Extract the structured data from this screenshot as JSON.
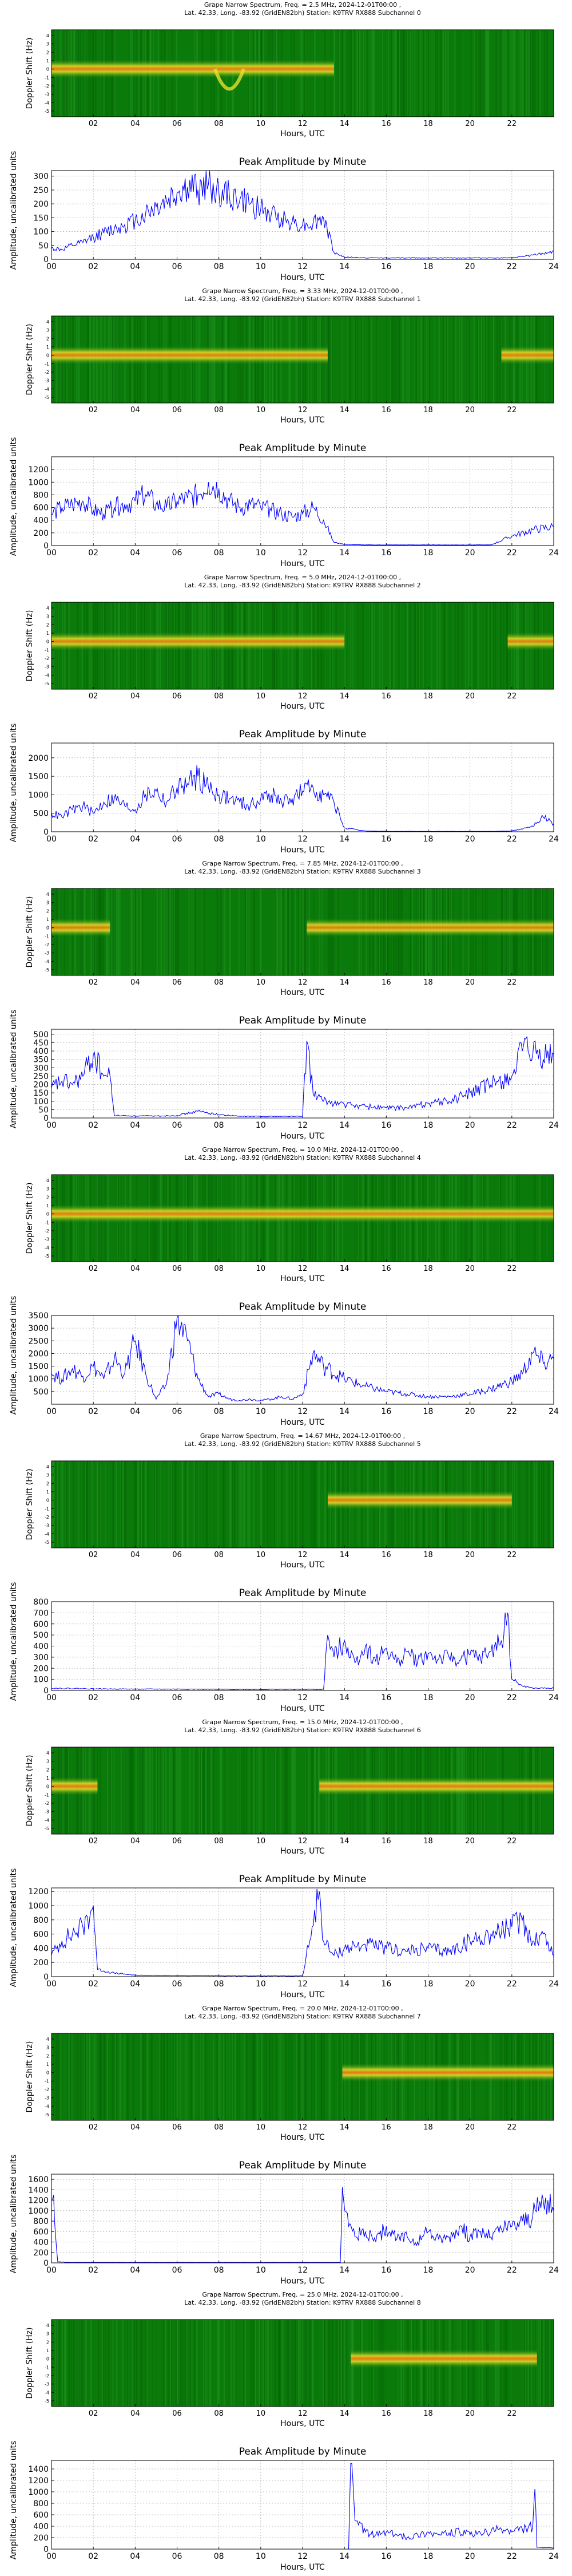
{
  "colors": {
    "line": "#0000ff",
    "grid": "#b0b0b0",
    "spectro_bg": "#0a7a0a",
    "spectro_band": "#e8e02a",
    "spectro_core": "#f07a10"
  },
  "common": {
    "xlabel": "Hours, UTC",
    "spectro_ylabel": "Doppler Shift (Hz)",
    "amp_ylabel": "Amplitude, uncalibrated units",
    "amp_title": "Peak Amplitude by Minute",
    "spectro_xticks": [
      "02",
      "04",
      "06",
      "08",
      "10",
      "12",
      "14",
      "16",
      "18",
      "20",
      "22"
    ],
    "spectro_yticks": [
      "4",
      "3",
      "2",
      "1",
      "0",
      "-1",
      "-2",
      "-3",
      "-4",
      "-5"
    ],
    "amp_xticks": [
      "00",
      "02",
      "04",
      "06",
      "08",
      "10",
      "12",
      "14",
      "16",
      "18",
      "20",
      "22",
      "24"
    ]
  },
  "chart_data": [
    {
      "type": "heatmap",
      "title": "Grape Narrow Spectrum, Freq. = 2.5 MHz, 2024-12-01T00:00 ,",
      "subtitle": "Lat.  42.33, Long. -83.92 (GridEN82bh) Station: K9TRV RX888 Subchannel 0",
      "xlabel": "Hours, UTC",
      "ylabel": "Doppler Shift (Hz)",
      "signal_hours": [
        0,
        13.5
      ],
      "dip_hour": 8.5
    },
    {
      "type": "line",
      "title": "Peak Amplitude by Minute",
      "xlabel": "Hours, UTC",
      "ylabel": "Amplitude, uncalibrated units",
      "xlim": [
        0,
        24
      ],
      "ylim": [
        0,
        320
      ],
      "yticks": [
        0,
        50,
        100,
        150,
        200,
        250,
        300
      ],
      "x": [
        0,
        0.5,
        1,
        1.5,
        2,
        2.5,
        3,
        3.5,
        4,
        4.5,
        5,
        5.5,
        6,
        6.5,
        7,
        7.5,
        8,
        8.5,
        9,
        9.5,
        10,
        10.5,
        11,
        11.5,
        12,
        12.5,
        13,
        13.5,
        14,
        15,
        16,
        17,
        18,
        19,
        20,
        21,
        22,
        23,
        23.5,
        24
      ],
      "y": [
        40,
        35,
        50,
        60,
        80,
        95,
        110,
        125,
        140,
        165,
        190,
        210,
        240,
        260,
        250,
        270,
        240,
        230,
        215,
        200,
        180,
        160,
        150,
        135,
        125,
        130,
        150,
        25,
        8,
        5,
        5,
        5,
        5,
        5,
        5,
        5,
        5,
        15,
        20,
        30
      ]
    },
    {
      "type": "heatmap",
      "title": "Grape Narrow Spectrum, Freq. = 3.33 MHz, 2024-12-01T00:00 ,",
      "subtitle": "Lat.  42.33, Long. -83.92 (GridEN82bh) Station: K9TRV RX888 Subchannel 1",
      "xlabel": "Hours, UTC",
      "ylabel": "Doppler Shift (Hz)",
      "signal_hours": [
        0,
        13.2
      ],
      "late_signal_hours": [
        21.5,
        24
      ]
    },
    {
      "type": "line",
      "title": "Peak Amplitude by Minute",
      "xlabel": "Hours, UTC",
      "ylabel": "Amplitude, uncalibrated units",
      "xlim": [
        0,
        24
      ],
      "ylim": [
        0,
        1400
      ],
      "yticks": [
        0,
        200,
        400,
        600,
        800,
        1000,
        1200
      ],
      "x": [
        0,
        0.5,
        1,
        1.5,
        2,
        2.5,
        3,
        3.5,
        4,
        4.5,
        5,
        5.5,
        6,
        6.5,
        7,
        7.5,
        8,
        8.5,
        9,
        9.5,
        10,
        10.5,
        11,
        11.5,
        12,
        12.5,
        13,
        13.5,
        14,
        15,
        16,
        17,
        18,
        19,
        20,
        21,
        22,
        23,
        24
      ],
      "y": [
        500,
        600,
        650,
        700,
        550,
        500,
        600,
        650,
        700,
        800,
        650,
        600,
        700,
        750,
        800,
        1000,
        900,
        700,
        600,
        650,
        600,
        550,
        500,
        450,
        500,
        600,
        400,
        50,
        20,
        10,
        10,
        10,
        10,
        10,
        10,
        10,
        150,
        250,
        300
      ]
    },
    {
      "type": "heatmap",
      "title": "Grape Narrow Spectrum, Freq. = 5.0 MHz, 2024-12-01T00:00 ,",
      "subtitle": "Lat.  42.33, Long. -83.92 (GridEN82bh) Station: K9TRV RX888 Subchannel 2",
      "xlabel": "Hours, UTC",
      "ylabel": "Doppler Shift (Hz)",
      "signal_hours": [
        0,
        14
      ],
      "late_signal_hours": [
        21.8,
        24
      ]
    },
    {
      "type": "line",
      "title": "Peak Amplitude by Minute",
      "xlabel": "Hours, UTC",
      "ylabel": "Amplitude, uncalibrated units",
      "xlim": [
        0,
        24
      ],
      "ylim": [
        0,
        2400
      ],
      "yticks": [
        0,
        500,
        1000,
        1500,
        2000
      ],
      "x": [
        0,
        0.5,
        1,
        1.5,
        2,
        2.5,
        3,
        3.5,
        4,
        4.5,
        5,
        5.5,
        6,
        6.5,
        7,
        7.5,
        8,
        8.5,
        9,
        9.5,
        10,
        10.5,
        11,
        11.5,
        12,
        12.5,
        13,
        13.5,
        14,
        15,
        16,
        17,
        18,
        19,
        20,
        21,
        22,
        23,
        23.5,
        24
      ],
      "y": [
        500,
        400,
        600,
        700,
        500,
        800,
        900,
        700,
        600,
        1000,
        1100,
        800,
        1200,
        1300,
        1500,
        1200,
        1000,
        900,
        800,
        700,
        900,
        1000,
        800,
        900,
        1100,
        1200,
        1000,
        800,
        100,
        20,
        10,
        10,
        10,
        10,
        10,
        10,
        20,
        150,
        400,
        200
      ]
    },
    {
      "type": "heatmap",
      "title": "Grape Narrow Spectrum, Freq. = 7.85 MHz, 2024-12-01T00:00 ,",
      "subtitle": "Lat.  42.33, Long. -83.92 (GridEN82bh) Station: K9TRV RX888 Subchannel 3",
      "xlabel": "Hours, UTC",
      "ylabel": "Doppler Shift (Hz)",
      "signal_hours": [
        0,
        2.8
      ],
      "late_signal_hours": [
        12.2,
        24
      ]
    },
    {
      "type": "line",
      "title": "Peak Amplitude by Minute",
      "xlabel": "Hours, UTC",
      "ylabel": "Amplitude, uncalibrated units",
      "xlim": [
        0,
        24
      ],
      "ylim": [
        0,
        530
      ],
      "yticks": [
        0,
        50,
        100,
        150,
        200,
        250,
        300,
        350,
        400,
        450,
        500
      ],
      "x": [
        0,
        0.5,
        1,
        1.5,
        2,
        2.5,
        2.8,
        3,
        4,
        5,
        6,
        7,
        8,
        9,
        10,
        11,
        12,
        12.2,
        12.5,
        13,
        14,
        15,
        16,
        17,
        18,
        19,
        20,
        21,
        22,
        22.5,
        23,
        23.5,
        24
      ],
      "y": [
        180,
        220,
        200,
        250,
        380,
        250,
        250,
        15,
        12,
        12,
        15,
        40,
        20,
        10,
        10,
        10,
        10,
        460,
        150,
        100,
        80,
        70,
        60,
        60,
        90,
        100,
        150,
        200,
        250,
        400,
        380,
        350,
        380
      ]
    },
    {
      "type": "heatmap",
      "title": "Grape Narrow Spectrum, Freq. = 10.0 MHz, 2024-12-01T00:00 ,",
      "subtitle": "Lat.  42.33, Long. -83.92 (GridEN82bh) Station: K9TRV RX888 Subchannel 4",
      "xlabel": "Hours, UTC",
      "ylabel": "Doppler Shift (Hz)",
      "signal_hours": [
        0,
        24
      ]
    },
    {
      "type": "line",
      "title": "Peak Amplitude by Minute",
      "xlabel": "Hours, UTC",
      "ylabel": "Amplitude, uncalibrated units",
      "xlim": [
        0,
        24
      ],
      "ylim": [
        0,
        3500
      ],
      "yticks": [
        500,
        1000,
        1500,
        2000,
        2500,
        3000,
        3500
      ],
      "x": [
        0,
        0.5,
        1,
        1.5,
        2,
        2.5,
        3,
        3.5,
        4,
        4.5,
        5,
        5.5,
        6,
        6.5,
        7,
        7.5,
        8,
        8.5,
        9,
        9.5,
        10,
        10.5,
        11,
        11.5,
        12,
        12.5,
        13,
        14,
        15,
        16,
        17,
        18,
        19,
        20,
        21,
        22,
        22.5,
        23,
        23.5,
        24
      ],
      "y": [
        1200,
        1000,
        1400,
        1100,
        1500,
        1000,
        1800,
        1200,
        2500,
        1200,
        200,
        800,
        3400,
        2500,
        1000,
        300,
        400,
        200,
        150,
        200,
        150,
        200,
        300,
        200,
        400,
        2000,
        1500,
        1000,
        700,
        500,
        400,
        300,
        300,
        400,
        600,
        900,
        1200,
        2000,
        1600,
        1800
      ]
    },
    {
      "type": "heatmap",
      "title": "Grape Narrow Spectrum, Freq. = 14.67 MHz, 2024-12-01T00:00 ,",
      "subtitle": "Lat.  42.33, Long. -83.92 (GridEN82bh) Station: K9TRV RX888 Subchannel 5",
      "xlabel": "Hours, UTC",
      "ylabel": "Doppler Shift (Hz)",
      "signal_hours": [
        13.2,
        22
      ]
    },
    {
      "type": "line",
      "title": "Peak Amplitude by Minute",
      "xlabel": "Hours, UTC",
      "ylabel": "Amplitude, uncalibrated units",
      "xlim": [
        0,
        24
      ],
      "ylim": [
        0,
        800
      ],
      "yticks": [
        0,
        100,
        200,
        300,
        400,
        500,
        600,
        700,
        800
      ],
      "x": [
        0,
        2,
        4,
        6,
        8,
        10,
        12,
        13,
        13.2,
        13.5,
        14,
        14.5,
        15,
        15.5,
        16,
        16.5,
        17,
        17.5,
        18,
        18.5,
        19,
        19.5,
        20,
        20.5,
        21,
        21.5,
        21.8,
        22,
        22.5,
        23,
        24
      ],
      "y": [
        20,
        15,
        12,
        12,
        10,
        10,
        10,
        10,
        500,
        300,
        450,
        250,
        400,
        260,
        380,
        250,
        350,
        260,
        330,
        280,
        300,
        270,
        320,
        290,
        350,
        450,
        700,
        100,
        40,
        20,
        20
      ]
    },
    {
      "type": "heatmap",
      "title": "Grape Narrow Spectrum, Freq. = 15.0 MHz, 2024-12-01T00:00 ,",
      "subtitle": "Lat.  42.33, Long. -83.92 (GridEN82bh) Station: K9TRV RX888 Subchannel 6",
      "xlabel": "Hours, UTC",
      "ylabel": "Doppler Shift (Hz)",
      "signal_hours": [
        0,
        2.2
      ],
      "late_signal_hours": [
        12.8,
        24
      ]
    },
    {
      "type": "line",
      "title": "Peak Amplitude by Minute",
      "xlabel": "Hours, UTC",
      "ylabel": "Amplitude, uncalibrated units",
      "xlim": [
        0,
        24
      ],
      "ylim": [
        0,
        1250
      ],
      "yticks": [
        0,
        200,
        400,
        600,
        800,
        1000,
        1200
      ],
      "x": [
        0,
        0.5,
        1,
        1.5,
        2,
        2.2,
        2.5,
        3,
        4,
        6,
        8,
        10,
        12,
        12.8,
        13,
        13.5,
        14,
        15,
        16,
        17,
        18,
        19,
        20,
        21,
        22,
        22.5,
        23,
        23.5,
        24
      ],
      "y": [
        300,
        500,
        600,
        700,
        1000,
        100,
        80,
        50,
        20,
        15,
        12,
        10,
        10,
        1200,
        500,
        300,
        400,
        450,
        400,
        350,
        400,
        350,
        500,
        600,
        700,
        800,
        500,
        600,
        300
      ]
    },
    {
      "type": "heatmap",
      "title": "Grape Narrow Spectrum, Freq. = 20.0 MHz, 2024-12-01T00:00 ,",
      "subtitle": "Lat.  42.33, Long. -83.92 (GridEN82bh) Station: K9TRV RX888 Subchannel 7",
      "xlabel": "Hours, UTC",
      "ylabel": "Doppler Shift (Hz)",
      "signal_hours": [
        13.9,
        24
      ]
    },
    {
      "type": "line",
      "title": "Peak Amplitude by Minute",
      "xlabel": "Hours, UTC",
      "ylabel": "Amplitude, uncalibrated units",
      "xlim": [
        0,
        24
      ],
      "ylim": [
        0,
        1700
      ],
      "yticks": [
        0,
        200,
        400,
        600,
        800,
        1000,
        1200,
        1400,
        1600
      ],
      "x": [
        0,
        0.1,
        0.2,
        0.3,
        1,
        4,
        8,
        12,
        13.8,
        13.9,
        14.2,
        14.5,
        15,
        15.5,
        16,
        16.5,
        17,
        17.5,
        18,
        18.5,
        19,
        19.5,
        20,
        20.5,
        21,
        21.5,
        22,
        22.5,
        23,
        23.5,
        24
      ],
      "y": [
        1200,
        1300,
        500,
        20,
        10,
        10,
        10,
        10,
        10,
        1450,
        700,
        500,
        600,
        400,
        700,
        450,
        500,
        400,
        600,
        450,
        500,
        700,
        500,
        600,
        500,
        650,
        700,
        800,
        900,
        1200,
        1000
      ]
    },
    {
      "type": "heatmap",
      "title": "Grape Narrow Spectrum, Freq. = 25.0 MHz, 2024-12-01T00:00 ,",
      "subtitle": "Lat.  42.33, Long. -83.92 (GridEN82bh) Station: K9TRV RX888 Subchannel 8",
      "xlabel": "Hours, UTC",
      "ylabel": "Doppler Shift (Hz)",
      "signal_hours": [
        14.3,
        23.2
      ]
    },
    {
      "type": "line",
      "title": "Peak Amplitude by Minute",
      "xlabel": "Hours, UTC",
      "ylabel": "Amplitude, uncalibrated units",
      "xlim": [
        0,
        24
      ],
      "ylim": [
        0,
        1550
      ],
      "yticks": [
        0,
        200,
        400,
        600,
        800,
        1000,
        1200,
        1400
      ],
      "x": [
        0,
        4,
        8,
        12,
        14.2,
        14.3,
        14.5,
        15,
        15.5,
        16,
        16.5,
        17,
        17.5,
        18,
        18.5,
        19,
        19.5,
        20,
        20.5,
        21,
        21.5,
        22,
        22.5,
        23,
        23.1,
        23.2,
        24
      ],
      "y": [
        0,
        0,
        0,
        0,
        0,
        1500,
        500,
        300,
        250,
        300,
        250,
        200,
        250,
        300,
        250,
        280,
        300,
        250,
        280,
        300,
        350,
        300,
        350,
        400,
        1050,
        30,
        20
      ]
    }
  ]
}
